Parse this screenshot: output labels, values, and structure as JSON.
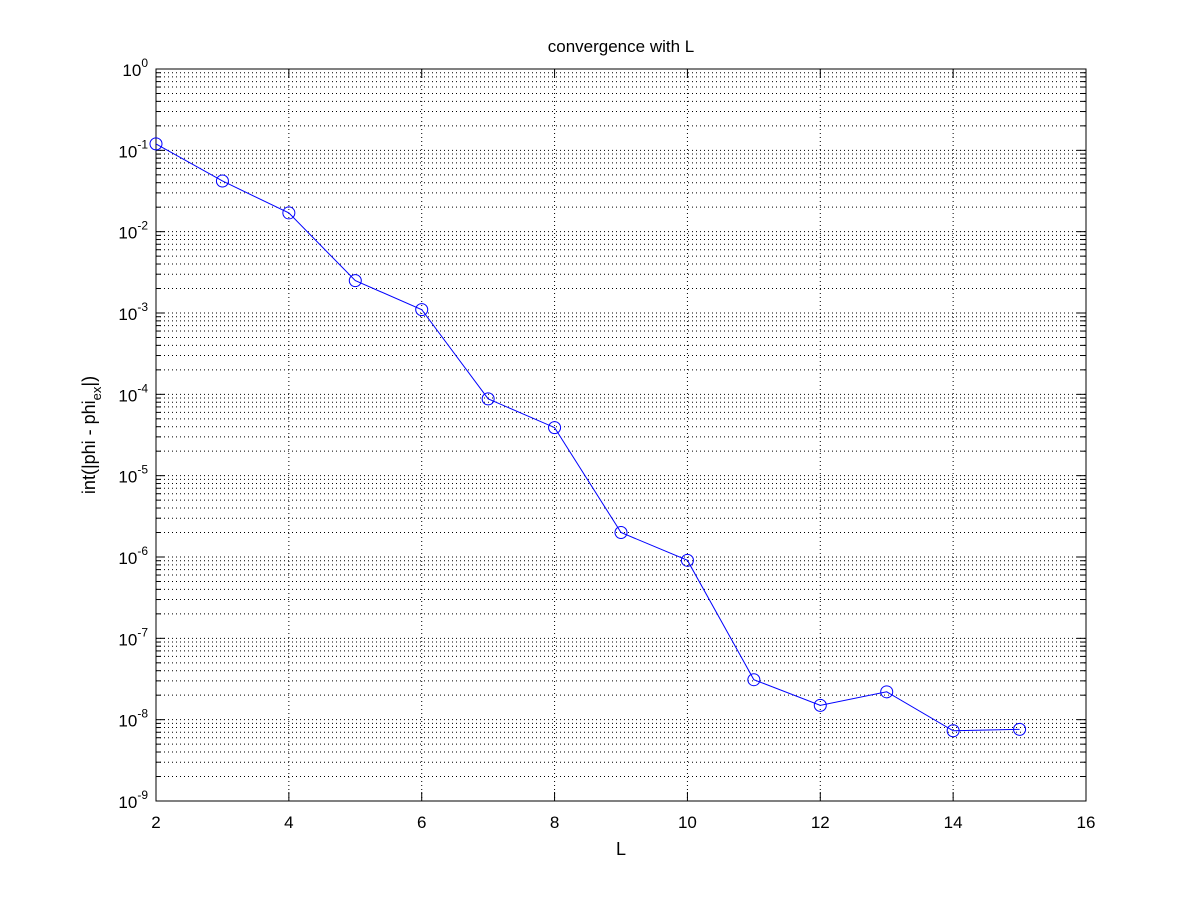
{
  "chart_data": {
    "type": "line",
    "title": "convergence with L",
    "xlabel": "L",
    "ylabel": {
      "main": "int(|phi - phi",
      "subscript": "ex",
      "suffix": "|)"
    },
    "xscale": "linear",
    "yscale": "log",
    "xlim": [
      2,
      16
    ],
    "ylim": [
      1e-09,
      1
    ],
    "grid": true,
    "legend": "none",
    "x_ticks": [
      "2",
      "4",
      "6",
      "8",
      "10",
      "12",
      "14",
      "16"
    ],
    "y_ticks": [
      {
        "base": "10",
        "exp": "0"
      },
      {
        "base": "10",
        "exp": "-1"
      },
      {
        "base": "10",
        "exp": "-2"
      },
      {
        "base": "10",
        "exp": "-3"
      },
      {
        "base": "10",
        "exp": "-4"
      },
      {
        "base": "10",
        "exp": "-5"
      },
      {
        "base": "10",
        "exp": "-6"
      },
      {
        "base": "10",
        "exp": "-7"
      },
      {
        "base": "10",
        "exp": "-8"
      },
      {
        "base": "10",
        "exp": "-9"
      }
    ],
    "series": [
      {
        "color": "#0000ff",
        "marker": "circle",
        "x": [
          2,
          3,
          4,
          5,
          6,
          7,
          8,
          9,
          10,
          11,
          12,
          13,
          14,
          15
        ],
        "y": [
          0.12,
          0.042,
          0.017,
          0.0025,
          0.0011,
          8.8e-05,
          3.9e-05,
          2e-06,
          9.1e-07,
          3.1e-08,
          1.5e-08,
          2.2e-08,
          7.3e-09,
          7.6e-09
        ]
      }
    ],
    "colors": {
      "series": "#0000ff",
      "axes": "#000000",
      "grid": "#000000",
      "background": "#ffffff"
    }
  }
}
